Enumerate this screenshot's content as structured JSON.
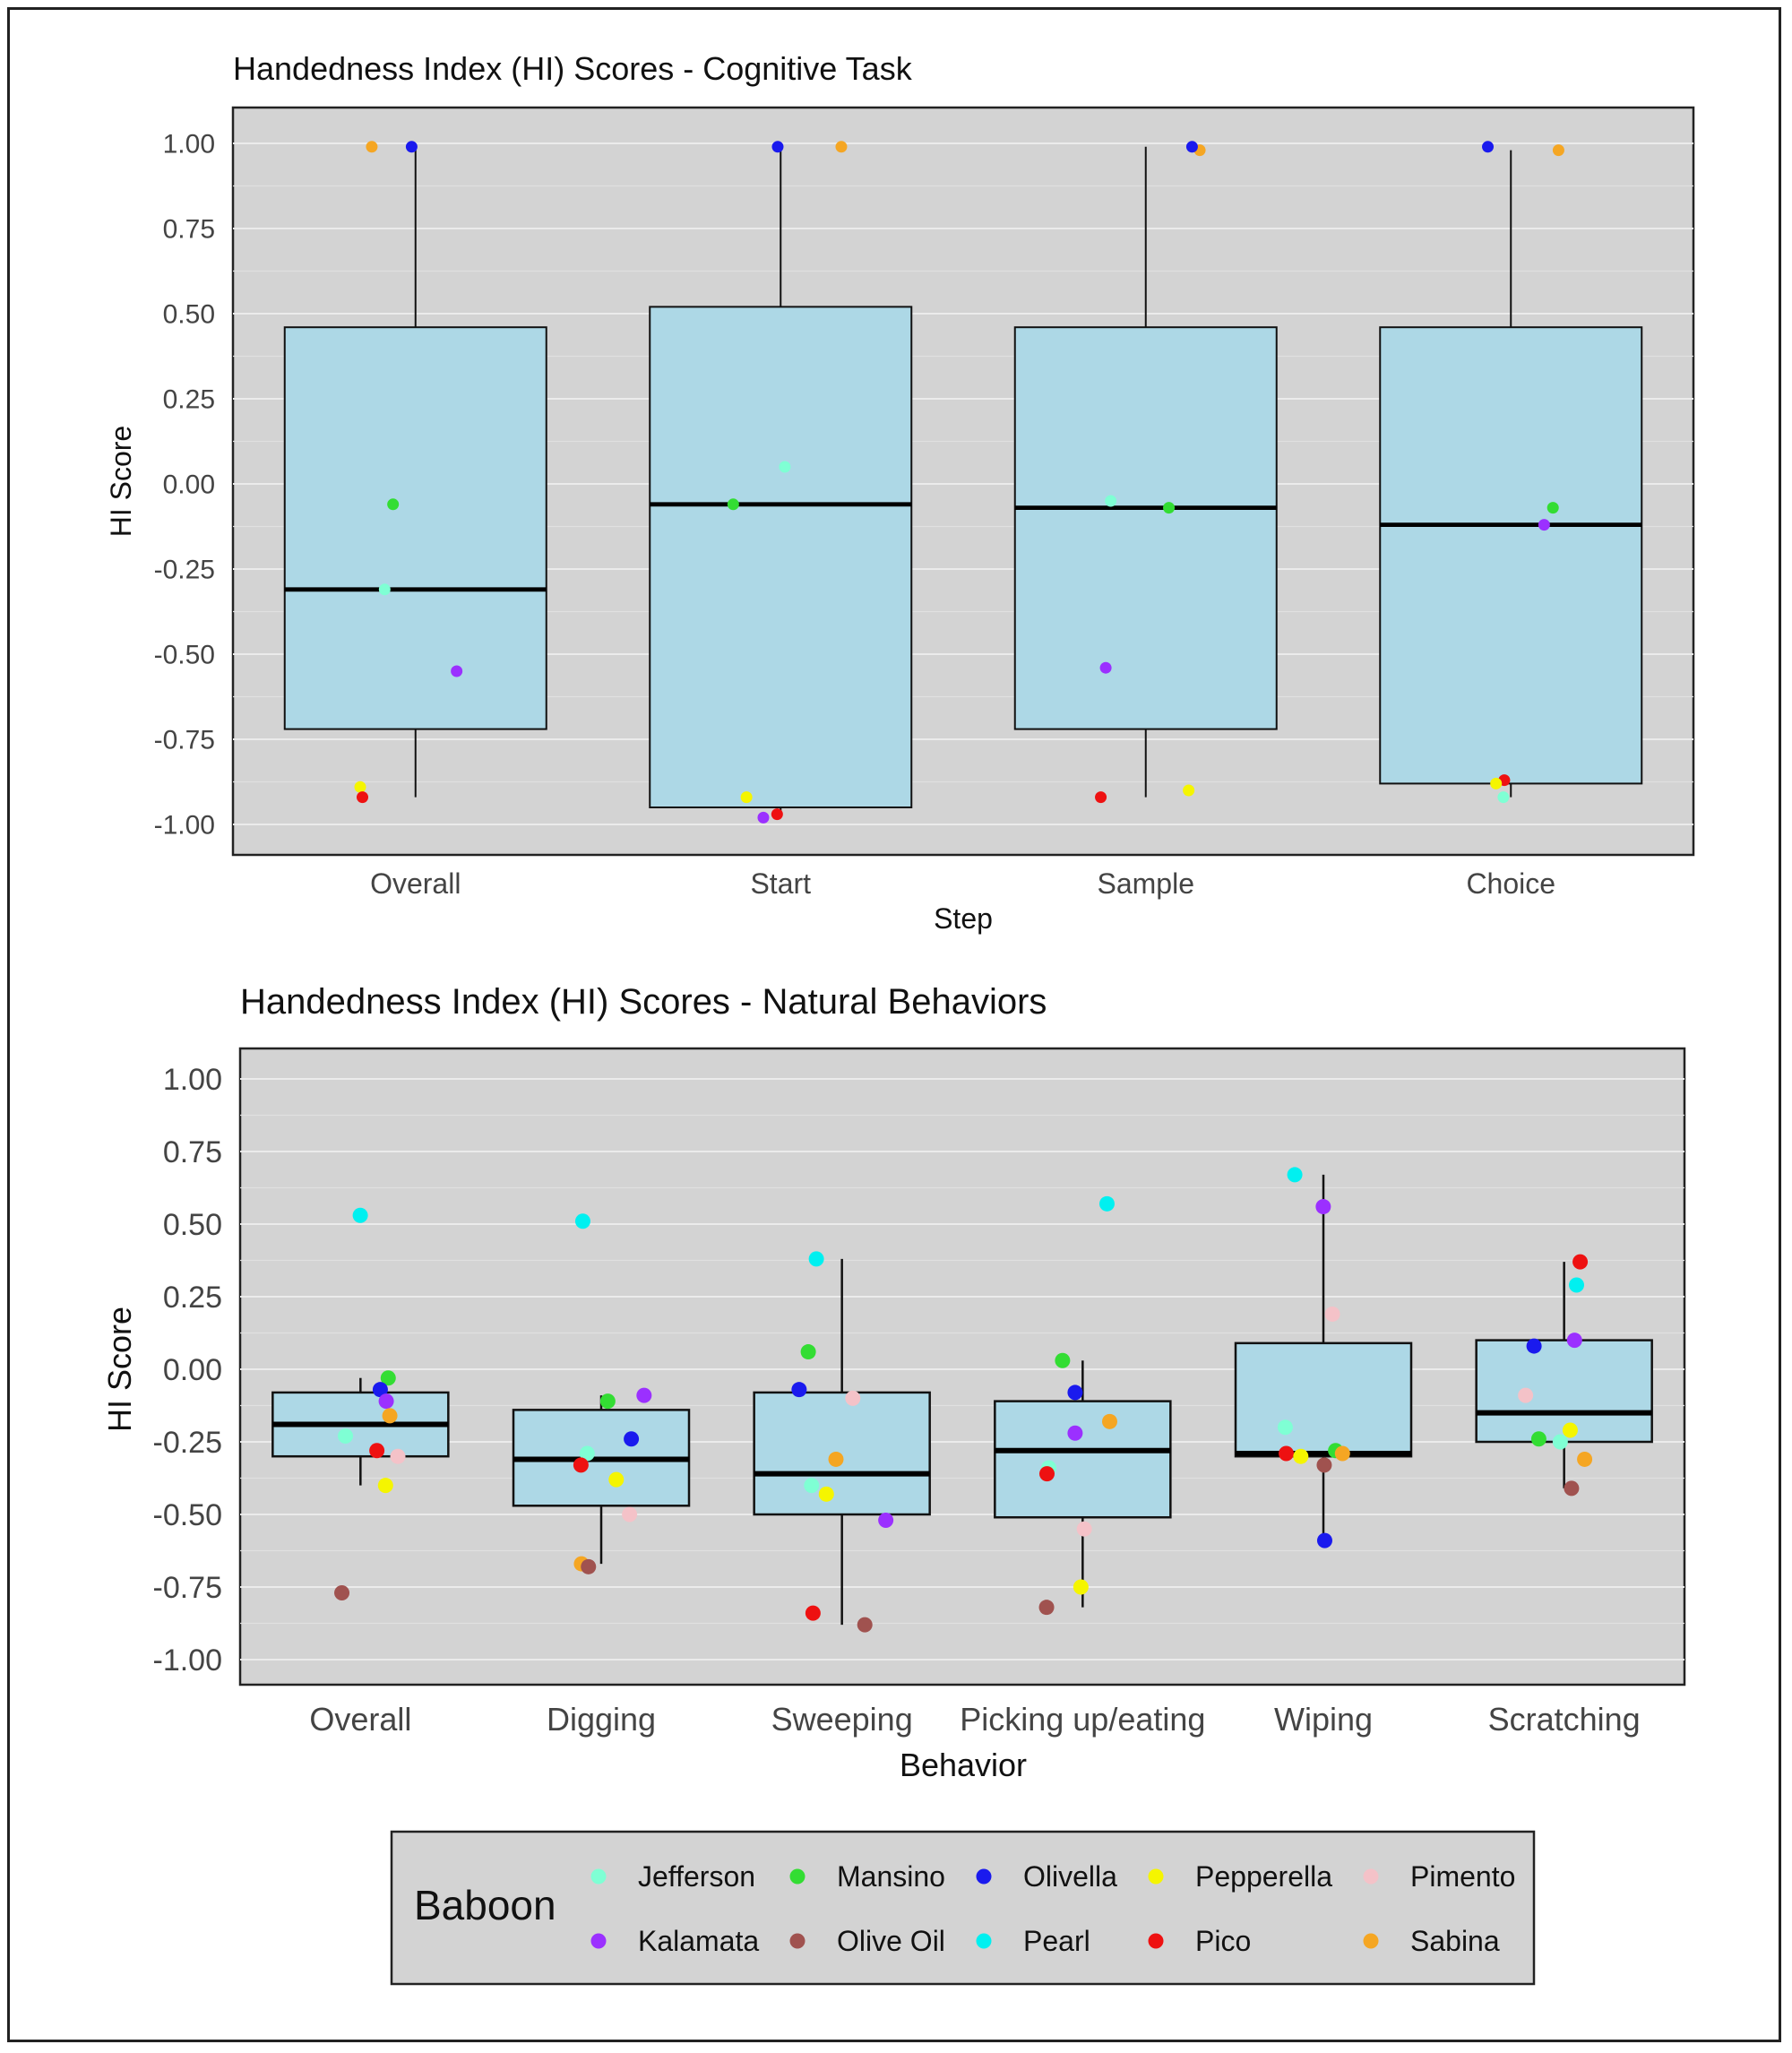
{
  "chart_data": [
    {
      "type": "box",
      "title": "Handedness Index (HI) Scores - Cognitive Task",
      "xlabel": "Step",
      "ylabel": "HI Score",
      "ylim": [
        -1.0,
        1.0
      ],
      "yticks": [
        "1.00",
        "0.75",
        "0.50",
        "0.25",
        "0.00",
        "-0.25",
        "-0.50",
        "-0.75",
        "-1.00"
      ],
      "categories": [
        "Overall",
        "Start",
        "Sample",
        "Choice"
      ],
      "boxes": [
        {
          "category": "Overall",
          "min": -0.92,
          "q1": -0.72,
          "median": -0.31,
          "q3": 0.46,
          "max": 0.99
        },
        {
          "category": "Start",
          "min": -0.98,
          "q1": -0.95,
          "median": -0.06,
          "q3": 0.52,
          "max": 0.99
        },
        {
          "category": "Sample",
          "min": -0.92,
          "q1": -0.72,
          "median": -0.07,
          "q3": 0.46,
          "max": 0.99
        },
        {
          "category": "Choice",
          "min": -0.92,
          "q1": -0.88,
          "median": -0.12,
          "q3": 0.46,
          "max": 0.98
        }
      ],
      "points": [
        {
          "category": "Overall",
          "baboon": "Sabina",
          "value": 0.99
        },
        {
          "category": "Overall",
          "baboon": "Olivella",
          "value": 0.99
        },
        {
          "category": "Overall",
          "baboon": "Mansino",
          "value": -0.06
        },
        {
          "category": "Overall",
          "baboon": "Jefferson",
          "value": -0.31
        },
        {
          "category": "Overall",
          "baboon": "Kalamata",
          "value": -0.55
        },
        {
          "category": "Overall",
          "baboon": "Pepperella",
          "value": -0.89
        },
        {
          "category": "Overall",
          "baboon": "Pico",
          "value": -0.92
        },
        {
          "category": "Start",
          "baboon": "Olivella",
          "value": 0.99
        },
        {
          "category": "Start",
          "baboon": "Sabina",
          "value": 0.99
        },
        {
          "category": "Start",
          "baboon": "Jefferson",
          "value": 0.05
        },
        {
          "category": "Start",
          "baboon": "Mansino",
          "value": -0.06
        },
        {
          "category": "Start",
          "baboon": "Pepperella",
          "value": -0.92
        },
        {
          "category": "Start",
          "baboon": "Pico",
          "value": -0.97
        },
        {
          "category": "Start",
          "baboon": "Kalamata",
          "value": -0.98
        },
        {
          "category": "Sample",
          "baboon": "Sabina",
          "value": 0.98
        },
        {
          "category": "Sample",
          "baboon": "Olivella",
          "value": 0.99
        },
        {
          "category": "Sample",
          "baboon": "Jefferson",
          "value": -0.05
        },
        {
          "category": "Sample",
          "baboon": "Mansino",
          "value": -0.07
        },
        {
          "category": "Sample",
          "baboon": "Kalamata",
          "value": -0.54
        },
        {
          "category": "Sample",
          "baboon": "Pepperella",
          "value": -0.9
        },
        {
          "category": "Sample",
          "baboon": "Pico",
          "value": -0.92
        },
        {
          "category": "Choice",
          "baboon": "Sabina",
          "value": 0.98
        },
        {
          "category": "Choice",
          "baboon": "Olivella",
          "value": 0.99
        },
        {
          "category": "Choice",
          "baboon": "Mansino",
          "value": -0.07
        },
        {
          "category": "Choice",
          "baboon": "Kalamata",
          "value": -0.12
        },
        {
          "category": "Choice",
          "baboon": "Pico",
          "value": -0.87
        },
        {
          "category": "Choice",
          "baboon": "Pepperella",
          "value": -0.88
        },
        {
          "category": "Choice",
          "baboon": "Jefferson",
          "value": -0.92
        }
      ]
    },
    {
      "type": "box",
      "title": "Handedness Index (HI) Scores - Natural Behaviors",
      "xlabel": "Behavior",
      "ylabel": "HI Score",
      "ylim": [
        -1.0,
        1.0
      ],
      "yticks": [
        "1.00",
        "0.75",
        "0.50",
        "0.25",
        "0.00",
        "-0.25",
        "-0.50",
        "-0.75",
        "-1.00"
      ],
      "categories": [
        "Overall",
        "Digging",
        "Sweeping",
        "Picking up/eating",
        "Wiping",
        "Scratching"
      ],
      "boxes": [
        {
          "category": "Overall",
          "min": -0.4,
          "q1": -0.3,
          "median": -0.19,
          "q3": -0.08,
          "max": -0.03
        },
        {
          "category": "Digging",
          "min": -0.67,
          "q1": -0.47,
          "median": -0.31,
          "q3": -0.14,
          "max": -0.09
        },
        {
          "category": "Sweeping",
          "min": -0.88,
          "q1": -0.5,
          "median": -0.36,
          "q3": -0.08,
          "max": 0.38
        },
        {
          "category": "Picking up/eating",
          "min": -0.82,
          "q1": -0.51,
          "median": -0.28,
          "q3": -0.11,
          "max": 0.03
        },
        {
          "category": "Wiping",
          "min": -0.59,
          "q1": -0.3,
          "median": -0.29,
          "q3": 0.09,
          "max": 0.67
        },
        {
          "category": "Scratching",
          "min": -0.41,
          "q1": -0.25,
          "median": -0.15,
          "q3": 0.1,
          "max": 0.37
        }
      ],
      "points": [
        {
          "category": "Overall",
          "baboon": "Pearl",
          "value": 0.53
        },
        {
          "category": "Overall",
          "baboon": "Mansino",
          "value": -0.03
        },
        {
          "category": "Overall",
          "baboon": "Olivella",
          "value": -0.07
        },
        {
          "category": "Overall",
          "baboon": "Kalamata",
          "value": -0.11
        },
        {
          "category": "Overall",
          "baboon": "Sabina",
          "value": -0.16
        },
        {
          "category": "Overall",
          "baboon": "Jefferson",
          "value": -0.23
        },
        {
          "category": "Overall",
          "baboon": "Pico",
          "value": -0.28
        },
        {
          "category": "Overall",
          "baboon": "Pimento",
          "value": -0.3
        },
        {
          "category": "Overall",
          "baboon": "Pepperella",
          "value": -0.4
        },
        {
          "category": "Overall",
          "baboon": "Olive Oil",
          "value": -0.77
        },
        {
          "category": "Digging",
          "baboon": "Pearl",
          "value": 0.51
        },
        {
          "category": "Digging",
          "baboon": "Kalamata",
          "value": -0.09
        },
        {
          "category": "Digging",
          "baboon": "Mansino",
          "value": -0.11
        },
        {
          "category": "Digging",
          "baboon": "Olivella",
          "value": -0.24
        },
        {
          "category": "Digging",
          "baboon": "Jefferson",
          "value": -0.29
        },
        {
          "category": "Digging",
          "baboon": "Pico",
          "value": -0.33
        },
        {
          "category": "Digging",
          "baboon": "Pepperella",
          "value": -0.38
        },
        {
          "category": "Digging",
          "baboon": "Pimento",
          "value": -0.5
        },
        {
          "category": "Digging",
          "baboon": "Sabina",
          "value": -0.67
        },
        {
          "category": "Digging",
          "baboon": "Olive Oil",
          "value": -0.68
        },
        {
          "category": "Sweeping",
          "baboon": "Pearl",
          "value": 0.38
        },
        {
          "category": "Sweeping",
          "baboon": "Mansino",
          "value": 0.06
        },
        {
          "category": "Sweeping",
          "baboon": "Olivella",
          "value": -0.07
        },
        {
          "category": "Sweeping",
          "baboon": "Pimento",
          "value": -0.1
        },
        {
          "category": "Sweeping",
          "baboon": "Sabina",
          "value": -0.31
        },
        {
          "category": "Sweeping",
          "baboon": "Jefferson",
          "value": -0.4
        },
        {
          "category": "Sweeping",
          "baboon": "Pepperella",
          "value": -0.43
        },
        {
          "category": "Sweeping",
          "baboon": "Kalamata",
          "value": -0.52
        },
        {
          "category": "Sweeping",
          "baboon": "Pico",
          "value": -0.84
        },
        {
          "category": "Sweeping",
          "baboon": "Olive Oil",
          "value": -0.88
        },
        {
          "category": "Picking up/eating",
          "baboon": "Pearl",
          "value": 0.57
        },
        {
          "category": "Picking up/eating",
          "baboon": "Mansino",
          "value": 0.03
        },
        {
          "category": "Picking up/eating",
          "baboon": "Olivella",
          "value": -0.08
        },
        {
          "category": "Picking up/eating",
          "baboon": "Sabina",
          "value": -0.18
        },
        {
          "category": "Picking up/eating",
          "baboon": "Kalamata",
          "value": -0.22
        },
        {
          "category": "Picking up/eating",
          "baboon": "Jefferson",
          "value": -0.34
        },
        {
          "category": "Picking up/eating",
          "baboon": "Pico",
          "value": -0.36
        },
        {
          "category": "Picking up/eating",
          "baboon": "Pimento",
          "value": -0.55
        },
        {
          "category": "Picking up/eating",
          "baboon": "Pepperella",
          "value": -0.75
        },
        {
          "category": "Picking up/eating",
          "baboon": "Olive Oil",
          "value": -0.82
        },
        {
          "category": "Wiping",
          "baboon": "Pearl",
          "value": 0.67
        },
        {
          "category": "Wiping",
          "baboon": "Kalamata",
          "value": 0.56
        },
        {
          "category": "Wiping",
          "baboon": "Pimento",
          "value": 0.19
        },
        {
          "category": "Wiping",
          "baboon": "Jefferson",
          "value": -0.2
        },
        {
          "category": "Wiping",
          "baboon": "Mansino",
          "value": -0.28
        },
        {
          "category": "Wiping",
          "baboon": "Pico",
          "value": -0.29
        },
        {
          "category": "Wiping",
          "baboon": "Sabina",
          "value": -0.29
        },
        {
          "category": "Wiping",
          "baboon": "Pepperella",
          "value": -0.3
        },
        {
          "category": "Wiping",
          "baboon": "Olive Oil",
          "value": -0.33
        },
        {
          "category": "Wiping",
          "baboon": "Olivella",
          "value": -0.59
        },
        {
          "category": "Scratching",
          "baboon": "Pico",
          "value": 0.37
        },
        {
          "category": "Scratching",
          "baboon": "Pearl",
          "value": 0.29
        },
        {
          "category": "Scratching",
          "baboon": "Kalamata",
          "value": 0.1
        },
        {
          "category": "Scratching",
          "baboon": "Olivella",
          "value": 0.08
        },
        {
          "category": "Scratching",
          "baboon": "Pimento",
          "value": -0.09
        },
        {
          "category": "Scratching",
          "baboon": "Pepperella",
          "value": -0.21
        },
        {
          "category": "Scratching",
          "baboon": "Mansino",
          "value": -0.24
        },
        {
          "category": "Scratching",
          "baboon": "Jefferson",
          "value": -0.25
        },
        {
          "category": "Scratching",
          "baboon": "Sabina",
          "value": -0.31
        },
        {
          "category": "Scratching",
          "baboon": "Olive Oil",
          "value": -0.41
        }
      ]
    }
  ],
  "legend": {
    "title": "Baboon",
    "placement": "bottom",
    "items": [
      {
        "name": "Jefferson",
        "color": "#7FFFD4"
      },
      {
        "name": "Mansino",
        "color": "#33DD33"
      },
      {
        "name": "Olivella",
        "color": "#1A1AEE"
      },
      {
        "name": "Pepperella",
        "color": "#F5F500"
      },
      {
        "name": "Pimento",
        "color": "#F4C2C8"
      },
      {
        "name": "Kalamata",
        "color": "#9B30FF"
      },
      {
        "name": "Olive Oil",
        "color": "#A0524F"
      },
      {
        "name": "Pearl",
        "color": "#00F0F0"
      },
      {
        "name": "Pico",
        "color": "#EE1111"
      },
      {
        "name": "Sabina",
        "color": "#F5A623"
      }
    ]
  },
  "colors": {
    "panel": "#D3D3D3",
    "box_fill": "#ADD8E6",
    "gridline": "#E4E4E4"
  }
}
